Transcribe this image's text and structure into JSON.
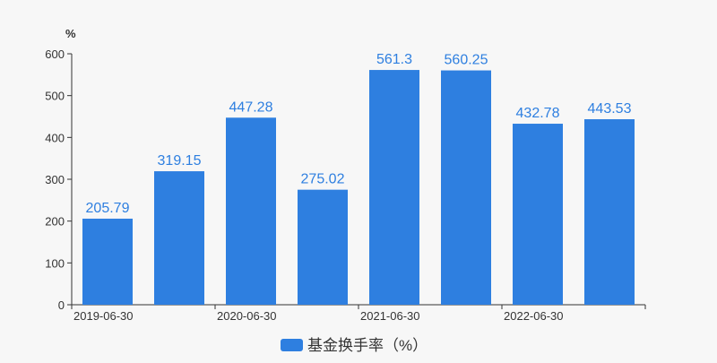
{
  "chart_data": {
    "type": "bar",
    "ylabel": "%",
    "ylim": [
      0,
      600
    ],
    "yticks": [
      0,
      100,
      200,
      300,
      400,
      500,
      600
    ],
    "categories": [
      "2019-06-30",
      "",
      "2020-06-30",
      "",
      "2021-06-30",
      "",
      "2022-06-30",
      ""
    ],
    "series": [
      {
        "name": "基金换手率（%）",
        "color": "#2e7fe0",
        "values": [
          205.79,
          319.15,
          447.28,
          275.02,
          561.3,
          560.25,
          432.78,
          443.53
        ],
        "labels": [
          "205.79",
          "319.15",
          "447.28",
          "275.02",
          "561.3",
          "560.25",
          "432.78",
          "443.53"
        ]
      }
    ],
    "grid": false,
    "legend_position": "bottom"
  }
}
